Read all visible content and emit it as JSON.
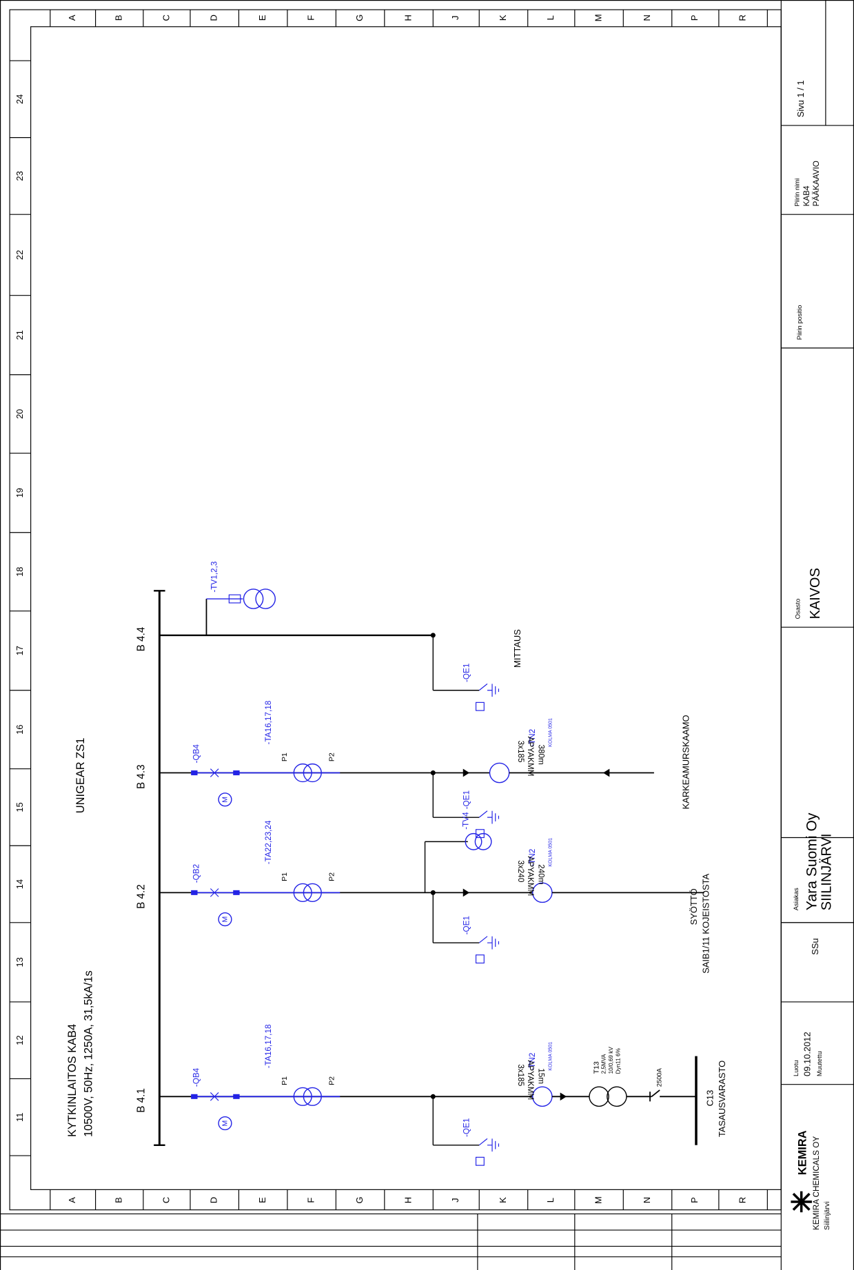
{
  "columns": [
    "A",
    "B",
    "C",
    "D",
    "E",
    "F",
    "G",
    "H",
    "J",
    "K",
    "L",
    "M",
    "N",
    "P",
    "R"
  ],
  "rows": [
    "24",
    "23",
    "22",
    "21",
    "20",
    "19",
    "18",
    "17",
    "16",
    "15",
    "14",
    "13",
    "12",
    "11"
  ],
  "drawing": {
    "title": "KYTKINLAITOS KAB4",
    "rating": "10500V, 50Hz, 1250A, 31,5kA/1s",
    "switchgear": "UNIGEAR ZS1",
    "motor_symbol": "M",
    "terminals": [
      "P1",
      "P2"
    ],
    "feeders": [
      {
        "busbar": "B 4.1",
        "breaker": "-QB4",
        "ct": "-TA16,17,18",
        "earth": "-QE1",
        "sensor": "-TN2",
        "sensor_type": "KOLMA 0501",
        "cable": "APYAKMM",
        "cable_size": "3x185",
        "length": "15m",
        "transformer": "T13",
        "transformer_power": "2,5MVA",
        "transformer_voltage": "10/0,69 kV",
        "transformer_group": "Dyn11 6%",
        "switch": "2500A",
        "destination": "C13",
        "destination_name": "TASAUSVARASTO"
      },
      {
        "busbar": "B 4.2",
        "breaker": "-QB2",
        "ct": "-TA22,23,24",
        "earth": "-QE1",
        "vt": "-TV4",
        "sensor": "-TN2",
        "sensor_type": "KOLMA 0501",
        "cable": "APYAKMM",
        "cable_size": "3x240",
        "length": "240m",
        "destination": "SYÖTTÖ",
        "destination_name": "SAIB1/11 KOJEISTOSTA"
      },
      {
        "busbar": "B 4.3",
        "breaker": "-QB4",
        "ct": "-TA16,17,18",
        "earth": "-QE1",
        "sensor": "-TN2",
        "sensor_type": "KOLMA 0501",
        "cable": "APYAKMM",
        "cable_size": "3x185",
        "length": "380m",
        "destination": "KARKEAMURSKAAMO"
      },
      {
        "busbar": "B 4.4",
        "vt": "-TV1,2,3",
        "earth": "-QE1",
        "destination": "MITTAUS"
      }
    ]
  },
  "title_block": {
    "sheet": "Sivu 1 / 1",
    "name_label": "Piirin nimi",
    "name": "KAB4",
    "name2": "PÄÄKAAVIO",
    "position_label": "Piirin positio",
    "department_label": "Osasto",
    "department": "KAIVOS",
    "customer_label": "Asiakas",
    "customer": "Yara Suomi Oy",
    "customer_location": "SIILINJÄRVI",
    "author": "SSu",
    "created_label": "Luotu",
    "created": "09.10.2012",
    "modified_label": "Muutettu",
    "logo": "KEMIRA",
    "company": "KEMIRA CHEMICALS OY",
    "company_location": "Siilinjärvi"
  }
}
